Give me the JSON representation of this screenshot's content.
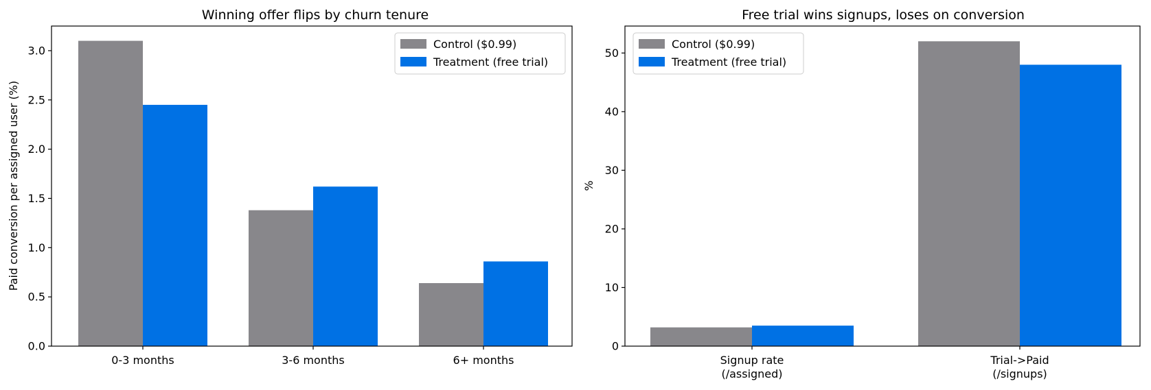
{
  "colors": {
    "control": "#88878b",
    "treatment": "#0071e4",
    "axis": "#000000",
    "background": "#ffffff"
  },
  "chart_data": [
    {
      "type": "bar",
      "title": "Winning offer flips by churn tenure",
      "xlabel": "",
      "ylabel": "Paid conversion per assigned user (%)",
      "categories": [
        "0-3 months",
        "3-6 months",
        "6+ months"
      ],
      "series": [
        {
          "name": "Control ($0.99)",
          "values": [
            3.1,
            1.38,
            0.64
          ]
        },
        {
          "name": "Treatment (free trial)",
          "values": [
            2.45,
            1.62,
            0.86
          ]
        }
      ],
      "ylim": [
        0,
        3.25
      ],
      "yticks": [
        0.0,
        0.5,
        1.0,
        1.5,
        2.0,
        2.5,
        3.0
      ],
      "ytick_labels": [
        "0.0",
        "0.5",
        "1.0",
        "1.5",
        "2.0",
        "2.5",
        "3.0"
      ],
      "legend": "top-right",
      "grid": false
    },
    {
      "type": "bar",
      "title": "Free trial wins signups, loses on conversion",
      "xlabel": "",
      "ylabel": "%",
      "categories": [
        [
          "Signup rate",
          "(/assigned)"
        ],
        [
          "Trial->Paid",
          "(/signups)"
        ]
      ],
      "series": [
        {
          "name": "Control ($0.99)",
          "values": [
            3.2,
            52.0
          ]
        },
        {
          "name": "Treatment (free trial)",
          "values": [
            3.5,
            48.0
          ]
        }
      ],
      "ylim": [
        0,
        54.6
      ],
      "yticks": [
        0,
        10,
        20,
        30,
        40,
        50
      ],
      "ytick_labels": [
        "0",
        "10",
        "20",
        "30",
        "40",
        "50"
      ],
      "legend": "top-left",
      "grid": false
    }
  ]
}
